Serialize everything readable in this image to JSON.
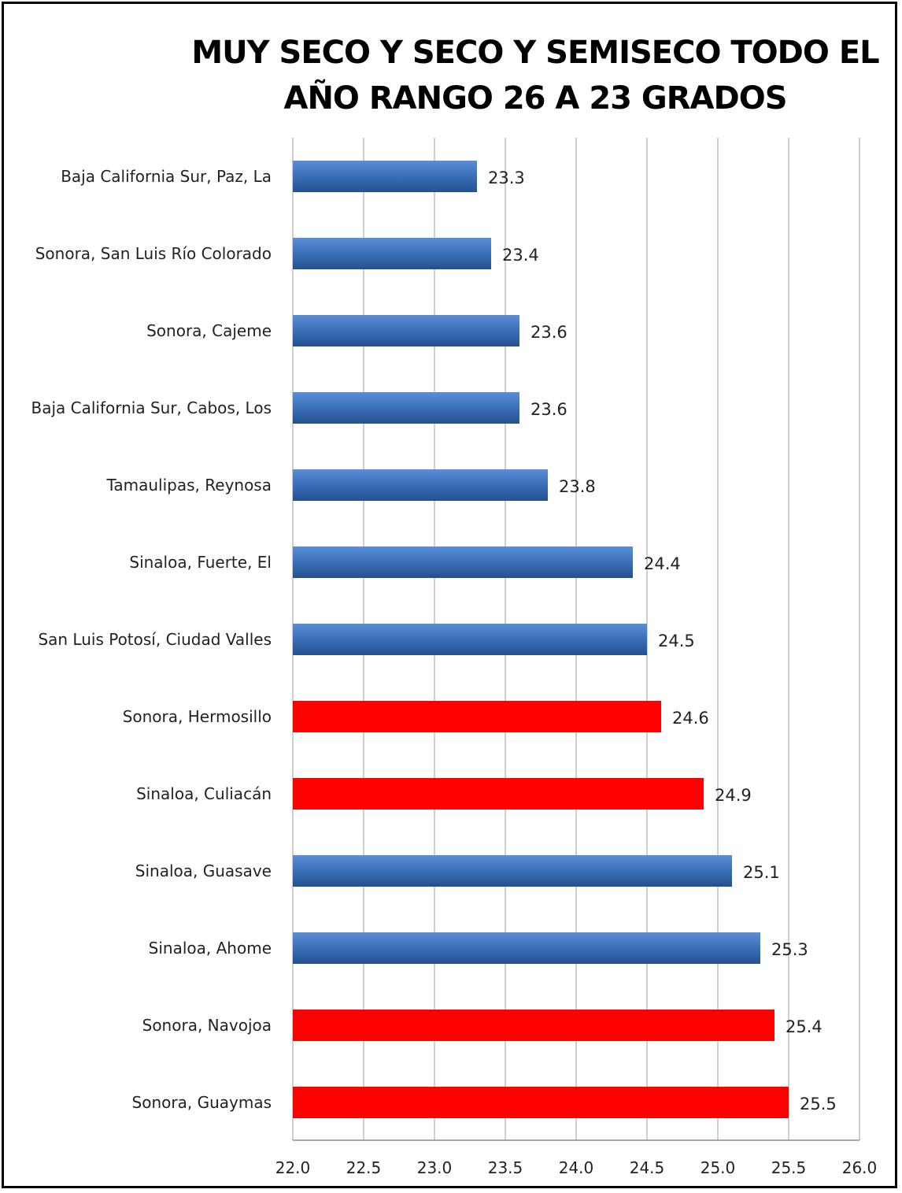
{
  "chart_data": {
    "type": "bar",
    "orientation": "horizontal",
    "title_lines": [
      "MUY SECO Y SECO Y SEMISECO TODO EL",
      "AÑO RANGO 26 A 23 GRADOS"
    ],
    "categories": [
      "Baja California Sur, Paz, La",
      "Sonora, San Luis Río Colorado",
      "Sonora, Cajeme",
      "Baja California Sur, Cabos, Los",
      "Tamaulipas, Reynosa",
      "Sinaloa, Fuerte, El",
      "San Luis Potosí, Ciudad Valles",
      "Sonora, Hermosillo",
      "Sinaloa, Culiacán",
      "Sinaloa, Guasave",
      "Sinaloa, Ahome",
      "Sonora, Navojoa",
      "Sonora, Guaymas"
    ],
    "values": [
      23.3,
      23.4,
      23.6,
      23.6,
      23.8,
      24.4,
      24.5,
      24.6,
      24.9,
      25.1,
      25.3,
      25.4,
      25.5
    ],
    "value_labels": [
      "23.3",
      "23.4",
      "23.6",
      "23.6",
      "23.8",
      "24.4",
      "24.5",
      "24.6",
      "24.9",
      "25.1",
      "25.3",
      "25.4",
      "25.5"
    ],
    "highlighted": [
      false,
      false,
      false,
      false,
      false,
      false,
      false,
      true,
      true,
      false,
      false,
      true,
      true
    ],
    "xlim": [
      22.0,
      26.0
    ],
    "ticks": [
      22.0,
      22.5,
      23.0,
      23.5,
      24.0,
      24.5,
      25.0,
      25.5,
      26.0
    ],
    "tick_labels": [
      "22.0",
      "22.5",
      "23.0",
      "23.5",
      "24.0",
      "24.5",
      "25.0",
      "25.5",
      "26.0"
    ],
    "xlabel": "",
    "ylabel": "",
    "grid": "vertical",
    "legend": "none",
    "colors": {
      "bar": "#3a6fb8",
      "bar_highlight": "#ff0000",
      "grid": "#bfbfbf",
      "text": "#222222"
    }
  }
}
